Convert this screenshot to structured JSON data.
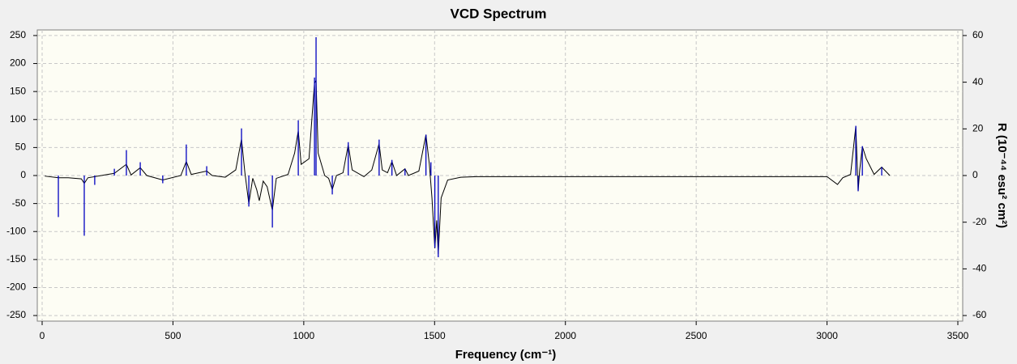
{
  "chart_data": {
    "type": "line",
    "title": "VCD Spectrum",
    "x_label": "Frequency (cm⁻¹)",
    "y2_label": "R (10⁻⁴⁴ esu² cm²)",
    "xlim": [
      0,
      3500
    ],
    "xticks": [
      0,
      500,
      1000,
      1500,
      2000,
      2500,
      3000,
      3500
    ],
    "ylim": [
      -260,
      260
    ],
    "yticks": [
      -250,
      -200,
      -150,
      -100,
      -50,
      0,
      50,
      100,
      150,
      200,
      250
    ],
    "y2lim": [
      -62.4,
      62.4
    ],
    "y2ticks": [
      -60,
      -40,
      -20,
      0,
      20,
      40,
      60
    ],
    "grid": true,
    "series": [
      {
        "type": "line",
        "color": "#000000",
        "x": [
          10,
          62,
          100,
          150,
          161,
          175,
          276,
          322,
          340,
          375,
          400,
          461,
          530,
          551,
          570,
          629,
          650,
          700,
          740,
          762,
          775,
          790,
          805,
          820,
          830,
          845,
          860,
          880,
          895,
          940,
          965,
          979,
          990,
          1020,
          1041,
          1047,
          1055,
          1080,
          1095,
          1109,
          1125,
          1150,
          1170,
          1185,
          1230,
          1260,
          1288,
          1300,
          1320,
          1337,
          1355,
          1387,
          1400,
          1440,
          1467,
          1480,
          1490,
          1501,
          1508,
          1514,
          1525,
          1550,
          1600,
          1660,
          2000,
          2500,
          2700,
          3000,
          3040,
          3060,
          3090,
          3110,
          3119,
          3125,
          3135,
          3150,
          3180,
          3209,
          3240
        ],
        "values": [
          -1,
          -4,
          -4,
          -6,
          -14,
          -4,
          4,
          20,
          1,
          14,
          0,
          -8,
          0,
          25,
          2,
          8,
          0,
          -3,
          10,
          65,
          5,
          -50,
          -5,
          -25,
          -45,
          -10,
          -20,
          -62,
          -5,
          2,
          40,
          80,
          20,
          30,
          165,
          170,
          40,
          0,
          -5,
          -25,
          0,
          5,
          55,
          10,
          -2,
          10,
          57,
          10,
          5,
          25,
          0,
          12,
          0,
          8,
          73,
          20,
          -40,
          -130,
          -80,
          -140,
          -40,
          -8,
          -3,
          -2,
          -2,
          -2,
          -2,
          -2,
          -16,
          -4,
          2,
          88,
          -28,
          10,
          52,
          30,
          2,
          15,
          0
        ]
      },
      {
        "type": "stick",
        "axis": "y2",
        "color": "#0000c0",
        "x": [
          62,
          161,
          201,
          276,
          322,
          375,
          461,
          551,
          629,
          762,
          790,
          880,
          979,
          1041,
          1047,
          1109,
          1170,
          1288,
          1337,
          1387,
          1467,
          1486,
          1501,
          1514,
          3110,
          3119,
          3135,
          3209
        ],
        "values": [
          -17.8,
          -25.8,
          -4,
          2.9,
          10.9,
          5.7,
          -3.3,
          13.3,
          4,
          20.2,
          -13.3,
          -22.3,
          23.7,
          42,
          59.3,
          -8.1,
          14.3,
          15.4,
          6.7,
          2.9,
          17.5,
          5.7,
          -31,
          -35,
          21.3,
          -6.7,
          12.6,
          3.6
        ]
      }
    ]
  }
}
